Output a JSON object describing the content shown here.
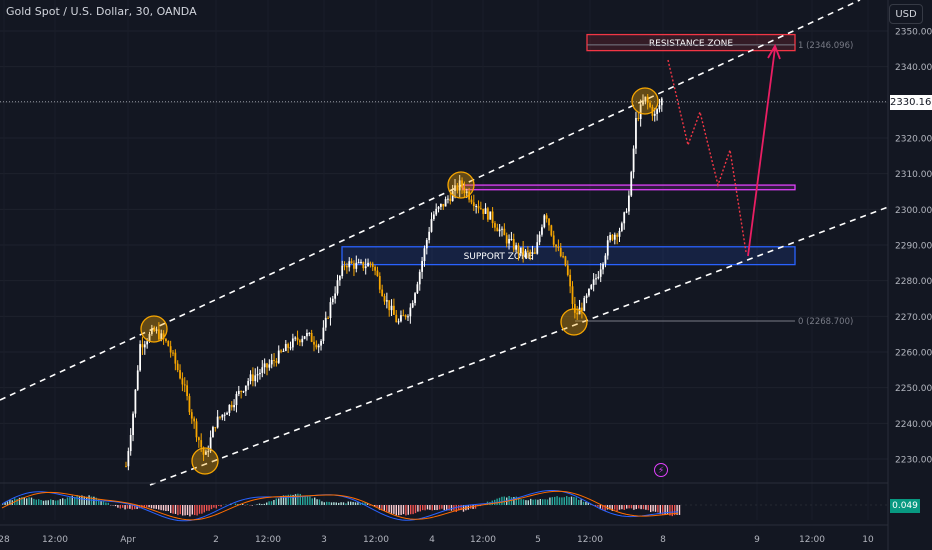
{
  "header": {
    "symbol_title": "Gold Spot / U.S. Dollar, 30, OANDA",
    "currency_button": "USD",
    "current_price": "2330.160",
    "macd_value": "0.049"
  },
  "chart_data": {
    "type": "candlestick",
    "title": "Gold Spot / U.S. Dollar, 30, OANDA",
    "ylim": [
      2225,
      2355
    ],
    "y_ticks": [
      "2230.000",
      "2240.000",
      "2250.000",
      "2260.000",
      "2270.000",
      "2280.000",
      "2290.000",
      "2300.000",
      "2310.000",
      "2320.000",
      "2330.000",
      "2340.000",
      "2350.000"
    ],
    "y_tick_values": [
      2230,
      2240,
      2250,
      2260,
      2270,
      2280,
      2290,
      2300,
      2310,
      2320,
      2330,
      2340,
      2350
    ],
    "x_ticks": [
      "28",
      "12:00",
      "Apr",
      "2",
      "12:00",
      "3",
      "12:00",
      "4",
      "12:00",
      "5",
      "12:00",
      "8",
      "9",
      "12:00",
      "10"
    ],
    "last_price": 2330.16,
    "zones": [
      {
        "label": "RESISTANCE ZONE",
        "low": 2344.5,
        "high": 2349,
        "color": "#f23645"
      },
      {
        "label": "",
        "low": 2305.5,
        "high": 2306.8,
        "color": "#e040fb"
      },
      {
        "label": "SUPPORT ZONE",
        "low": 2284.5,
        "high": 2289.5,
        "color": "#2962ff"
      }
    ],
    "fib_levels": [
      {
        "label": "1 (2346.096)",
        "value": 2346.096
      },
      {
        "label": "0 (2268.700)",
        "value": 2268.7
      }
    ],
    "channel": {
      "upper": "dashed",
      "lower": "dashed",
      "color": "#ffffff"
    },
    "swing_points": [
      {
        "x_label": "Apr",
        "value": 2266
      },
      {
        "x_label": "2",
        "value": 2230
      },
      {
        "x_label": "4",
        "value": 2307
      },
      {
        "x_label": "12:00",
        "value": 2269
      },
      {
        "x_label": "8",
        "value": 2331
      }
    ],
    "colors": {
      "up": "#ffffff",
      "down": "#f7a600",
      "projection": "#f23645",
      "forecast_arrow": "#e91e63"
    },
    "indicator": {
      "name": "MACD",
      "value": 0.049
    }
  }
}
